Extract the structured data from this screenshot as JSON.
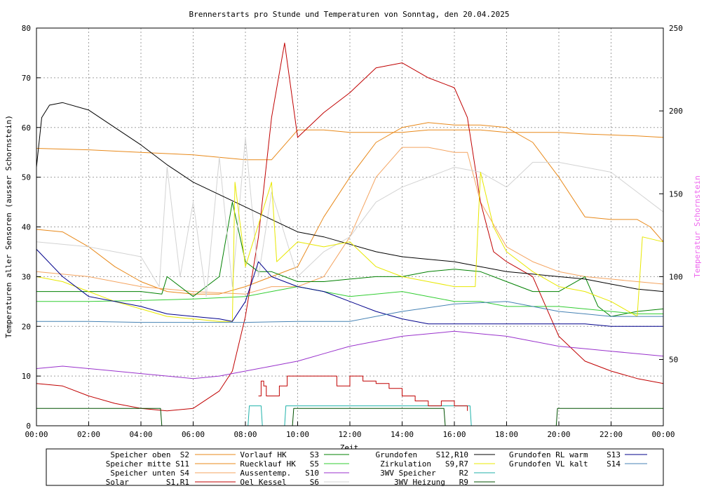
{
  "chart_data": {
    "type": "line",
    "title": "Brennerstarts pro Stunde und Temperaturen von Sonntag, den 20.04.2025",
    "xlabel": "Zeit",
    "ylabel": "Temperaturen aller Sensoren (ausser Schornstein)",
    "y2label": "Temperatur Schornstein",
    "xlim": [
      0,
      24
    ],
    "ylim": [
      0,
      80
    ],
    "y2lim": [
      10,
      250
    ],
    "grid": true,
    "x_ticks": [
      "00:00",
      "02:00",
      "04:00",
      "06:00",
      "08:00",
      "10:00",
      "12:00",
      "14:00",
      "16:00",
      "18:00",
      "20:00",
      "22:00",
      "00:00"
    ],
    "y_ticks": [
      0,
      10,
      20,
      30,
      40,
      50,
      60,
      70,
      80
    ],
    "y2_ticks": [
      50,
      100,
      150,
      200,
      250
    ],
    "legend_position": "bottom",
    "series": [
      {
        "name": "Speicher oben",
        "code": "S2",
        "color": "#e8891a",
        "axis": "y",
        "x": [
          0,
          2,
          4,
          6,
          8,
          9,
          9.5,
          10,
          11,
          12,
          13,
          14,
          15,
          16,
          17,
          18,
          19,
          20,
          21,
          22,
          23,
          24
        ],
        "y": [
          55.8,
          55.5,
          55,
          54.5,
          53.5,
          53.5,
          56.5,
          59.5,
          59.5,
          59,
          59,
          59,
          59.5,
          59.5,
          59.5,
          59,
          59,
          59,
          58.7,
          58.5,
          58.3,
          58
        ]
      },
      {
        "name": "Speicher mitte",
        "code": "S11",
        "color": "#e8891a",
        "axis": "y",
        "x": [
          0,
          1,
          2,
          3,
          4,
          5,
          6,
          7,
          8,
          9,
          10,
          11,
          12,
          13,
          14,
          15,
          16,
          17,
          18,
          19,
          20,
          21,
          22,
          23,
          23.5,
          24
        ],
        "y": [
          39.5,
          39,
          36,
          32,
          29,
          27,
          26.5,
          26.5,
          28,
          30,
          32,
          42,
          50,
          57,
          60,
          61,
          60.5,
          60.5,
          60,
          57,
          50,
          42,
          41.5,
          41.5,
          40,
          37
        ]
      },
      {
        "name": "Speicher unten",
        "code": "S4",
        "color": "#f4a460",
        "axis": "y",
        "x": [
          0,
          2,
          4,
          6,
          8,
          9,
          10,
          11,
          12,
          13,
          14,
          15,
          16,
          16.5,
          17,
          18,
          19,
          20,
          21,
          22,
          23,
          24
        ],
        "y": [
          31,
          30,
          28,
          27,
          26.5,
          28,
          28,
          30,
          38,
          50,
          56,
          56,
          55,
          55,
          45,
          36,
          33,
          31,
          30,
          29.5,
          29,
          28.5
        ]
      },
      {
        "name": "Solar",
        "code": "S1,R1",
        "color": "#c00000",
        "axis": "y",
        "x": [
          0,
          1,
          2,
          3,
          4,
          5,
          6,
          7,
          7.5,
          8,
          8.5,
          9,
          9.5,
          10,
          11,
          12,
          13,
          14,
          15,
          16,
          16.5,
          17,
          17.5,
          18,
          19,
          20,
          21,
          22,
          23,
          24
        ],
        "y": [
          8.5,
          8,
          6,
          4.5,
          3.5,
          3,
          3.5,
          7,
          11,
          22,
          38,
          62,
          77,
          58,
          63,
          67,
          72,
          73,
          70,
          68,
          62,
          45,
          35,
          33,
          30,
          18,
          13,
          11,
          9.5,
          8.5
        ]
      },
      {
        "name": "Vorlauf HK",
        "code": "S3",
        "color": "#008000",
        "axis": "y",
        "x": [
          0,
          2,
          4,
          4.8,
          5,
          6,
          7,
          7.5,
          8,
          8.5,
          9,
          10,
          11,
          12,
          13,
          14,
          15,
          16,
          17,
          18,
          19,
          20,
          21,
          21.5,
          22,
          23,
          24
        ],
        "y": [
          27,
          27,
          27,
          26.5,
          30,
          26,
          30,
          45,
          33,
          31,
          31,
          29,
          29,
          29.5,
          30,
          30,
          31,
          31.5,
          31,
          29,
          27,
          27,
          30,
          24,
          22,
          23,
          23.5
        ]
      },
      {
        "name": "Ruecklauf HK",
        "code": "S5",
        "color": "#32cd32",
        "axis": "y",
        "x": [
          0,
          2,
          4,
          6,
          8,
          9,
          10,
          11,
          12,
          13,
          14,
          15,
          16,
          17,
          18,
          19,
          20,
          21,
          22,
          23,
          24
        ],
        "y": [
          25,
          25,
          25.2,
          25.5,
          26,
          27,
          28,
          27,
          26,
          26.5,
          27,
          26,
          25,
          25,
          24,
          24,
          24,
          23.5,
          23,
          22.5,
          22.5
        ]
      },
      {
        "name": "Aussentemp.",
        "code": "S10",
        "color": "#9932cc",
        "axis": "y",
        "x": [
          0,
          1,
          2,
          3,
          4,
          5,
          6,
          7,
          8,
          9,
          10,
          11,
          12,
          13,
          14,
          15,
          16,
          17,
          18,
          19,
          20,
          21,
          22,
          23,
          24
        ],
        "y": [
          11.5,
          12,
          11.5,
          11,
          10.5,
          10,
          9.5,
          10,
          11,
          12,
          13,
          14.5,
          16,
          17,
          18,
          18.5,
          19,
          18.5,
          18,
          17,
          16,
          15.5,
          15,
          14.5,
          14
        ]
      },
      {
        "name": "Oel Kessel",
        "code": "S6",
        "color": "#d3d3d3",
        "axis": "y",
        "x": [
          0,
          2,
          4,
          4.7,
          5,
          5.5,
          6,
          6.5,
          7,
          7.5,
          8,
          8.5,
          9,
          10,
          11,
          12,
          13,
          14,
          15,
          16,
          17,
          18,
          19,
          20,
          21,
          22,
          23,
          24
        ],
        "y": [
          37,
          36,
          34,
          28,
          52,
          30,
          45,
          26,
          54,
          28,
          58,
          30,
          47,
          30,
          35,
          38,
          45,
          48,
          50,
          52,
          51,
          48,
          53,
          53,
          52,
          51,
          47,
          43
        ]
      },
      {
        "name": "Grundofen",
        "code": "S12,R10",
        "color": "#000000",
        "axis": "y",
        "x": [
          0,
          0.2,
          0.5,
          1,
          2,
          3,
          4,
          5,
          6,
          7,
          8,
          9,
          10,
          11,
          12,
          13,
          14,
          15,
          16,
          17,
          18,
          19,
          20,
          21,
          22,
          23,
          24
        ],
        "y": [
          52,
          62,
          64.5,
          65,
          63.5,
          60,
          56.5,
          52.5,
          49,
          46.5,
          44,
          41.5,
          39,
          38,
          36.5,
          35,
          34,
          33.5,
          33,
          32,
          31,
          30.5,
          30,
          29.5,
          28.5,
          27.5,
          27
        ]
      },
      {
        "name": "Zirkulation",
        "code": "S9,R7",
        "color": "#e8e800",
        "axis": "y",
        "x": [
          0,
          1,
          2,
          3,
          4,
          5,
          6,
          7,
          7.5,
          7.6,
          8,
          9,
          9.2,
          10,
          11,
          12,
          13,
          14,
          15,
          16,
          16.8,
          17,
          17.5,
          18,
          19,
          20,
          21,
          22,
          23,
          23.2,
          24
        ],
        "y": [
          30,
          29,
          27,
          25,
          23.5,
          22,
          21.5,
          21,
          21,
          49,
          32,
          49,
          33,
          37,
          36,
          37,
          32,
          30,
          29,
          28,
          28,
          51,
          40,
          35,
          31,
          28,
          27,
          25,
          22,
          38,
          37
        ]
      },
      {
        "name": "3WV Speicher",
        "code": "R2",
        "color": "#20b2aa",
        "axis": "y",
        "x": [
          8.1,
          8.15,
          8.6,
          8.65,
          9.5,
          9.55,
          16.6,
          16.65
        ],
        "y": [
          0,
          4,
          4,
          0,
          0,
          4,
          4,
          0
        ]
      },
      {
        "name": "3WV Heizung",
        "code": "R9",
        "color": "#005000",
        "axis": "y",
        "x": [
          0,
          4.75,
          4.8,
          9.8,
          9.85,
          15.6,
          15.65,
          19.9,
          19.95,
          24
        ],
        "y": [
          3.5,
          3.5,
          0,
          0,
          3.5,
          3.5,
          0,
          0,
          3.5,
          3.5
        ]
      },
      {
        "name": "Grundofen RL warm",
        "code": "S13",
        "color": "#00008b",
        "axis": "y",
        "x": [
          0,
          1,
          2,
          3,
          4,
          5,
          6,
          7,
          7.5,
          8,
          8.5,
          9,
          9.5,
          10,
          11,
          12,
          13,
          14,
          15,
          16,
          17,
          18,
          19,
          20,
          21,
          22,
          23,
          24
        ],
        "y": [
          35.5,
          30,
          26,
          25,
          24,
          22.5,
          22,
          21.5,
          21,
          25,
          33,
          30,
          29,
          28,
          27,
          25,
          23,
          21.5,
          20.5,
          20.5,
          20.5,
          20.5,
          20.5,
          20.5,
          20.5,
          20,
          20,
          20
        ]
      },
      {
        "name": "Grundofen VL kalt",
        "code": "S14",
        "color": "#4682b4",
        "axis": "y",
        "x": [
          0,
          2,
          4,
          6,
          8,
          10,
          12,
          14,
          16,
          18,
          19,
          20,
          21,
          22,
          23,
          24
        ],
        "y": [
          21,
          21,
          20.8,
          20.8,
          20.8,
          21,
          21,
          23,
          24.5,
          25,
          24,
          23,
          22.5,
          22,
          22,
          22
        ]
      },
      {
        "name": "Brennerstarts",
        "code": "",
        "color": "#c00000",
        "axis": "y",
        "step": true,
        "x": [
          8.5,
          8.6,
          8.7,
          8.8,
          9.3,
          9.6,
          10,
          11,
          11.5,
          12,
          12.5,
          13,
          13.5,
          14,
          14.5,
          15,
          15.5,
          16,
          16.5
        ],
        "y": [
          6,
          9,
          8,
          6,
          8,
          10,
          10,
          10,
          8,
          10,
          9,
          8.5,
          7.5,
          6,
          5,
          4,
          5,
          4,
          3
        ]
      }
    ]
  },
  "legend": [
    {
      "label": "Speicher oben  S2",
      "color": "#e8891a"
    },
    {
      "label": "Speicher mitte S11",
      "color": "#e8891a"
    },
    {
      "label": "Speicher unten S4",
      "color": "#f4a460"
    },
    {
      "label": "Solar        S1,R1",
      "color": "#c00000"
    },
    {
      "label": "Vorlauf HK     S3",
      "color": "#008000"
    },
    {
      "label": "Ruecklauf HK   S5",
      "color": "#32cd32"
    },
    {
      "label": "Aussentemp.   S10",
      "color": "#9932cc"
    },
    {
      "label": "Oel Kessel     S6",
      "color": "#d3d3d3"
    },
    {
      "label": "Grundofen    S12,R10",
      "color": "#000000"
    },
    {
      "label": "Zirkulation   S9,R7",
      "color": "#e8e800"
    },
    {
      "label": "3WV Speicher     R2",
      "color": "#20b2aa"
    },
    {
      "label": "3WV Heizung   R9",
      "color": "#005000"
    },
    {
      "label": "Grundofen RL warm    S13",
      "color": "#00008b"
    },
    {
      "label": "Grundofen VL kalt    S14",
      "color": "#4682b4"
    }
  ]
}
